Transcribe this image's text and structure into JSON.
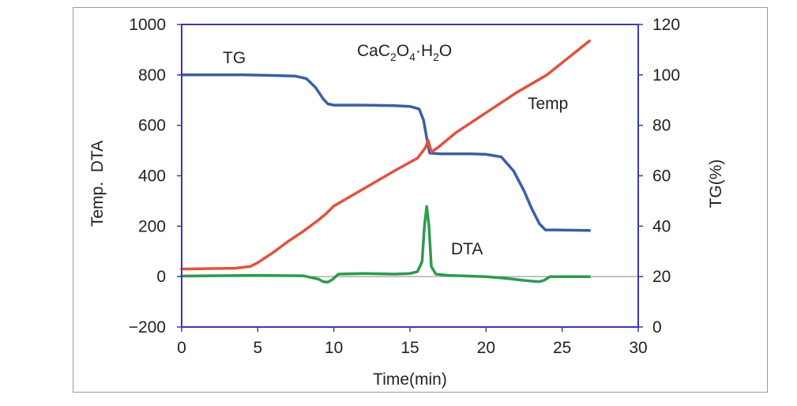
{
  "chart_data": {
    "type": "line",
    "xlabel": "Time(min)",
    "ylabel_left": "Temp.  DTA",
    "ylabel_right": "TG(%)",
    "xlim": [
      0,
      30
    ],
    "ylim_left": [
      -200,
      1000
    ],
    "ylim_right": [
      0,
      120
    ],
    "x_ticks": [
      "0",
      "5",
      "10",
      "15",
      "20",
      "25",
      "30"
    ],
    "y_left_ticks": [
      "−200",
      "0",
      "200",
      "400",
      "600",
      "800",
      "1000"
    ],
    "y_right_ticks": [
      "0",
      "20",
      "40",
      "60",
      "80",
      "100",
      "120"
    ],
    "grid": false,
    "annotations": {
      "compound": {
        "prefix": "CaC",
        "sub1": "2",
        "mid": "O",
        "sub2": "4",
        "dot": "·H",
        "sub3": "2",
        "suffix": "O"
      },
      "tg": "TG",
      "temp": "Temp",
      "dta": "DTA"
    },
    "colors": {
      "tg": "#3a5ea8",
      "temp": "#e0533f",
      "dta": "#2e9a4e",
      "zero_line": "#888888",
      "axis": "#3a3ab0"
    },
    "series": [
      {
        "name": "TG",
        "axis": "right",
        "x": [
          0,
          4,
          6,
          7.5,
          8.2,
          8.8,
          9.3,
          9.6,
          10,
          12,
          14,
          15,
          15.6,
          15.9,
          16.1,
          16.3,
          17,
          18,
          19,
          20,
          21,
          21.8,
          22.5,
          23,
          23.5,
          23.9,
          24.5,
          26.8
        ],
        "values": [
          100,
          100,
          99.8,
          99.5,
          98.5,
          95,
          90.5,
          88.5,
          88,
          88,
          87.8,
          87.5,
          86.5,
          82,
          75,
          69,
          68.7,
          68.7,
          68.7,
          68.5,
          67.5,
          62,
          54,
          47,
          41,
          38.5,
          38.5,
          38.3
        ]
      },
      {
        "name": "Temp",
        "axis": "left",
        "x": [
          0,
          2,
          3.5,
          4.5,
          5,
          6,
          7,
          8,
          9,
          9.5,
          10,
          12,
          14,
          15.5,
          16,
          16.2,
          16.4,
          16.8,
          18,
          20,
          22,
          24,
          26.8
        ],
        "values": [
          30,
          32,
          33,
          40,
          55,
          95,
          140,
          180,
          225,
          250,
          280,
          350,
          420,
          470,
          510,
          540,
          495,
          510,
          570,
          650,
          730,
          800,
          935
        ]
      },
      {
        "name": "DTA",
        "axis": "left",
        "x": [
          0,
          5,
          8,
          9,
          9.3,
          9.6,
          9.9,
          10.3,
          12,
          14,
          15,
          15.5,
          15.8,
          15.95,
          16.1,
          16.25,
          16.4,
          16.7,
          17.5,
          20,
          21.5,
          22.5,
          23,
          23.5,
          23.8,
          24.2,
          26.8
        ],
        "values": [
          2,
          5,
          3,
          -10,
          -20,
          -22,
          -12,
          10,
          12,
          10,
          12,
          20,
          60,
          200,
          278,
          200,
          40,
          10,
          5,
          0,
          -8,
          -15,
          -18,
          -20,
          -15,
          0,
          0
        ]
      }
    ]
  }
}
